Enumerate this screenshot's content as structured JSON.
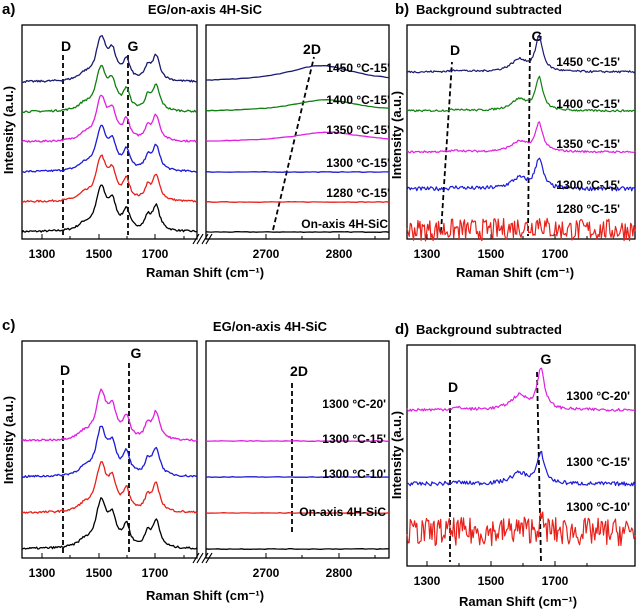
{
  "figure": {
    "panels": [
      {
        "id": "a",
        "panel_letter": "a)",
        "title": "EG/on-axis 4H-SiC",
        "ylabel": "Intensity (a.u.)",
        "xlabel": "Raman Shift (cm⁻¹)",
        "broken_axis": true,
        "ranges": [
          [
            1240,
            1860
          ],
          [
            2580,
            2890
          ]
        ],
        "xticks_left": [
          "1300",
          "1500",
          "1700"
        ],
        "xticks_right": [
          "2700",
          "2800"
        ],
        "markers": [
          "D",
          "G",
          "2D"
        ]
      },
      {
        "id": "b",
        "panel_letter": "b)",
        "title": "Background subtracted",
        "ylabel": "Intensity (a.u.)",
        "xlabel": "Raman Shift (cm⁻¹)",
        "broken_axis": false,
        "xticks": [
          "1300",
          "1500",
          "1700"
        ],
        "markers": [
          "D",
          "G"
        ]
      },
      {
        "id": "c",
        "panel_letter": "c)",
        "title": "EG/on-axis 4H-SiC",
        "ylabel": "Intensity (a.u.)",
        "xlabel": "Raman Shift (cm⁻¹)",
        "broken_axis": true,
        "xticks_left": [
          "1300",
          "1500",
          "1700"
        ],
        "xticks_right": [
          "2700",
          "2800"
        ],
        "markers": [
          "D",
          "G",
          "2D"
        ]
      },
      {
        "id": "d",
        "panel_letter": "d)",
        "title": "Background subtracted",
        "ylabel": "Intensity (a.u.)",
        "xlabel": "Raman Shift (cm⁻¹)",
        "broken_axis": false,
        "xticks": [
          "1300",
          "1500",
          "1700"
        ],
        "markers": [
          "D",
          "G"
        ]
      }
    ]
  },
  "chart_data": [
    {
      "panel": "a",
      "type": "line",
      "title": "EG/on-axis 4H-SiC",
      "xlabel": "Raman Shift (cm⁻¹)",
      "ylabel": "Intensity (a.u.)",
      "xlim_left": [
        1240,
        1860
      ],
      "xlim_right": [
        2580,
        2890
      ],
      "grid": false,
      "peak_markers": {
        "D": 1380,
        "G": 1600,
        "2D_from": 2690,
        "2D_to": 2800
      },
      "series": [
        {
          "name": "On-axis 4H-SiC",
          "color": "#000000",
          "offset": 0
        },
        {
          "name": "1280 °C-15'",
          "color": "#e8211b",
          "offset": 1
        },
        {
          "name": "1300 °C-15'",
          "color": "#1b1bd8",
          "offset": 2
        },
        {
          "name": "1350 °C-15'",
          "color": "#e020e0",
          "offset": 3
        },
        {
          "name": "1400 °C-15'",
          "color": "#108010",
          "offset": 4
        },
        {
          "name": "1450 °C-15'",
          "color": "#1a1a70",
          "offset": 5
        }
      ],
      "twod_peak_strength": [
        0,
        0,
        0,
        0.18,
        0.22,
        0.3
      ]
    },
    {
      "panel": "b",
      "type": "line",
      "title": "Background subtracted",
      "xlabel": "Raman Shift (cm⁻¹)",
      "ylabel": "Intensity (a.u.)",
      "xlim": [
        1230,
        1860
      ],
      "grid": false,
      "peak_markers": {
        "D_from": 1350,
        "D_to": 1395,
        "G": 1595
      },
      "series": [
        {
          "name": "1280 °C-15'",
          "color": "#e8211b",
          "offset": 0
        },
        {
          "name": "1300 °C-15'",
          "color": "#1b1bd8",
          "offset": 1
        },
        {
          "name": "1350 °C-15'",
          "color": "#e020e0",
          "offset": 2
        },
        {
          "name": "1400 °C-15'",
          "color": "#108010",
          "offset": 3
        },
        {
          "name": "1450 °C-15'",
          "color": "#1a1a70",
          "offset": 4
        }
      ]
    },
    {
      "panel": "c",
      "type": "line",
      "title": "EG/on-axis 4H-SiC",
      "xlabel": "Raman Shift (cm⁻¹)",
      "ylabel": "Intensity (a.u.)",
      "xlim_left": [
        1240,
        1860
      ],
      "xlim_right": [
        2580,
        2890
      ],
      "grid": false,
      "peak_markers": {
        "D": 1380,
        "G": 1600,
        "2D": 2735
      },
      "series": [
        {
          "name": "On-axis 4H-SiC",
          "color": "#000000",
          "offset": 0
        },
        {
          "name": "1300 °C-10'",
          "color": "#e8211b",
          "offset": 1
        },
        {
          "name": "1300 °C-15'",
          "color": "#1b1bd8",
          "offset": 2
        },
        {
          "name": "1300 °C-20'",
          "color": "#e020e0",
          "offset": 3
        }
      ]
    },
    {
      "panel": "d",
      "type": "line",
      "title": "Background subtracted",
      "xlabel": "Raman Shift (cm⁻¹)",
      "ylabel": "Intensity (a.u.)",
      "xlim": [
        1230,
        1860
      ],
      "grid": false,
      "peak_markers": {
        "D": 1360,
        "G_from": 1595,
        "G_to": 1605
      },
      "series": [
        {
          "name": "1300 °C-10'",
          "color": "#e8211b",
          "offset": 0
        },
        {
          "name": "1300 °C-15'",
          "color": "#1b1bd8",
          "offset": 1
        },
        {
          "name": "1300 °C-20'",
          "color": "#e020e0",
          "offset": 2
        }
      ]
    }
  ]
}
